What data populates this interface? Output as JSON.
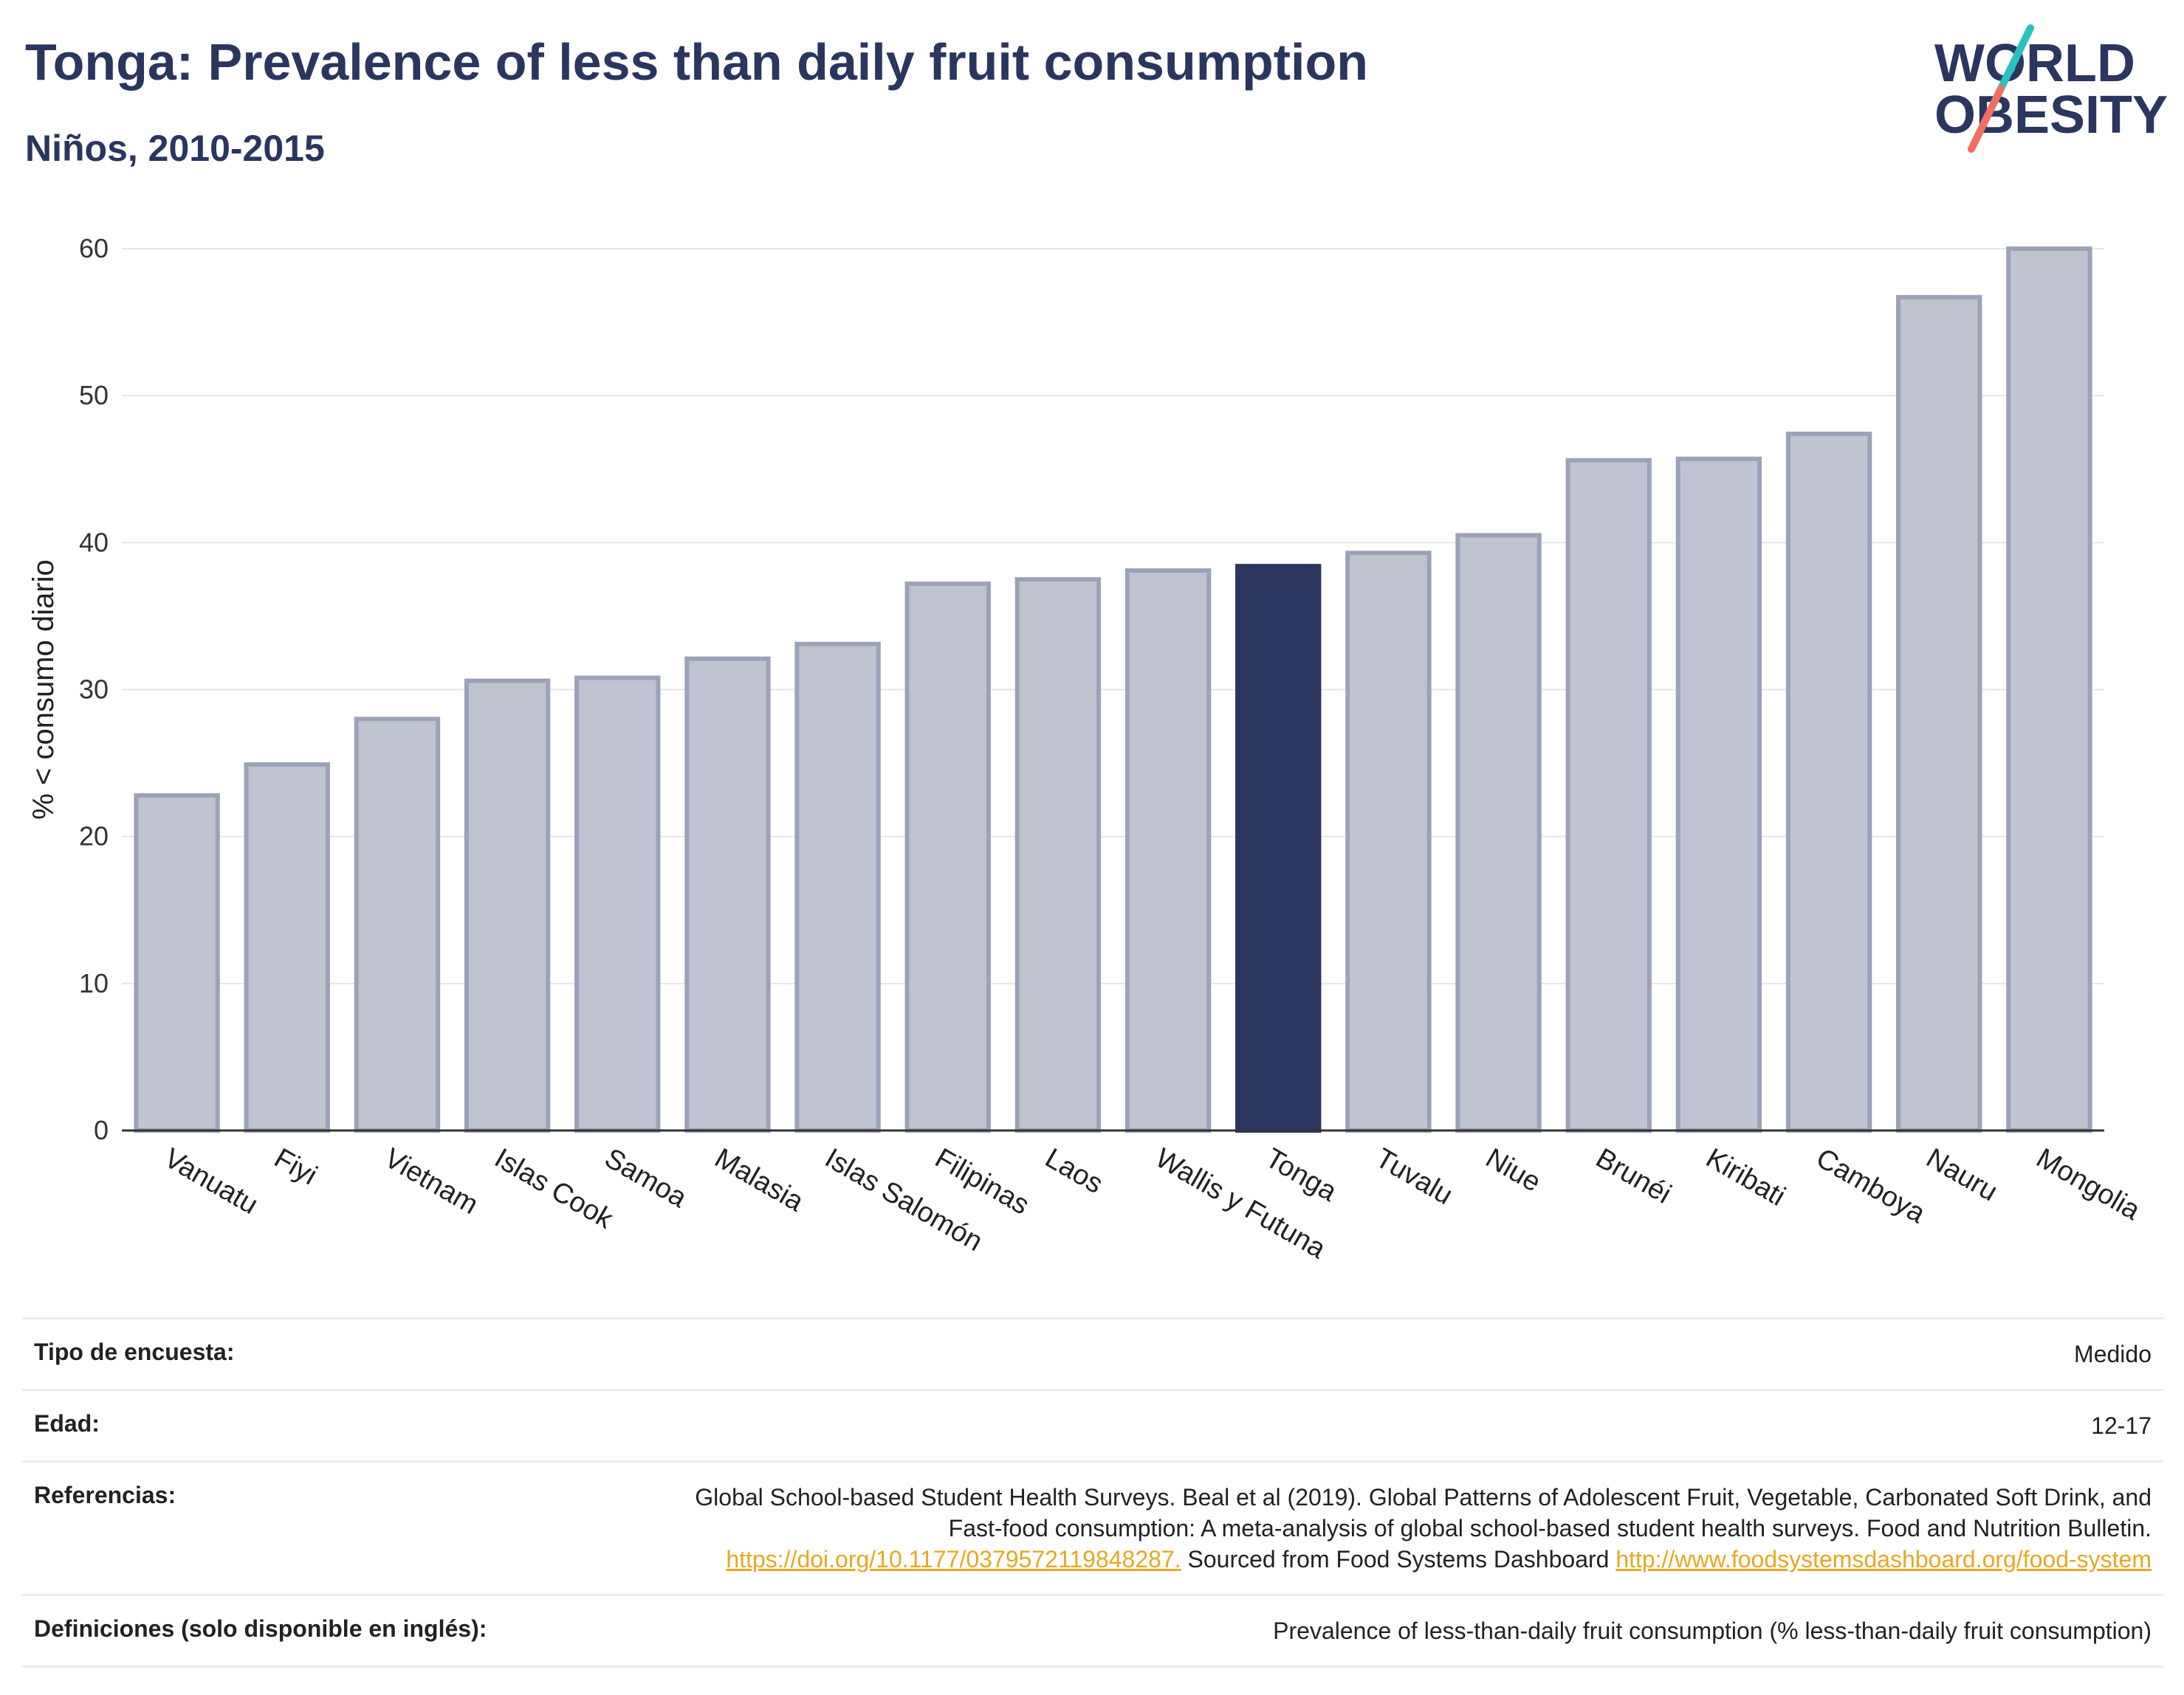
{
  "header": {
    "title": "Tonga: Prevalence of less than daily fruit consumption",
    "subtitle": "Niños, 2010-2015"
  },
  "logo": {
    "line1": "WORLD",
    "line2": "OBESITY",
    "text_color": "#2b3660",
    "accent_teal": "#2bbfbf",
    "accent_coral": "#f07060"
  },
  "chart_data": {
    "type": "bar",
    "ylabel": "% < consumo diario",
    "ylim": [
      0,
      60
    ],
    "yticks": [
      0,
      10,
      20,
      30,
      40,
      50,
      60
    ],
    "grid": true,
    "categories": [
      "Vanuatu",
      "Fiyi",
      "Vietnam",
      "Islas Cook",
      "Samoa",
      "Malasia",
      "Islas Salomón",
      "Filipinas",
      "Laos",
      "Wallis y Futuna",
      "Tonga",
      "Tuvalu",
      "Niue",
      "Brunéi",
      "Kiribati",
      "Camboya",
      "Nauru",
      "Mongolia"
    ],
    "values": [
      22.8,
      24.9,
      28.0,
      30.6,
      30.8,
      32.1,
      33.1,
      37.2,
      37.5,
      38.1,
      38.4,
      39.3,
      40.5,
      45.6,
      45.7,
      47.4,
      56.7,
      60.0
    ],
    "highlight": "Tonga",
    "colors": {
      "bar": "#c0c3d0",
      "bar_border": "#9ca2b8",
      "highlight": "#2b3660"
    }
  },
  "meta": [
    {
      "key": "Tipo de encuesta:",
      "value": "Medido"
    },
    {
      "key": "Edad:",
      "value": "12-17"
    },
    {
      "key": "Referencias:",
      "text1": "Global School-based Student Health Surveys. Beal et al (2019). Global Patterns of Adolescent Fruit, Vegetable, Carbonated Soft Drink, and Fast-food consumption: A meta-analysis of global school-based student health surveys. Food and Nutrition Bulletin.",
      "link1": "https://doi.org/10.1177/0379572119848287.",
      "text2": "Sourced from Food Systems Dashboard",
      "link2": "http://www.foodsystemsdashboard.org/food-system"
    },
    {
      "key": "Definiciones (solo disponible en inglés):",
      "value": "Prevalence of less-than-daily fruit consumption (% less-than-daily fruit consumption)"
    }
  ]
}
